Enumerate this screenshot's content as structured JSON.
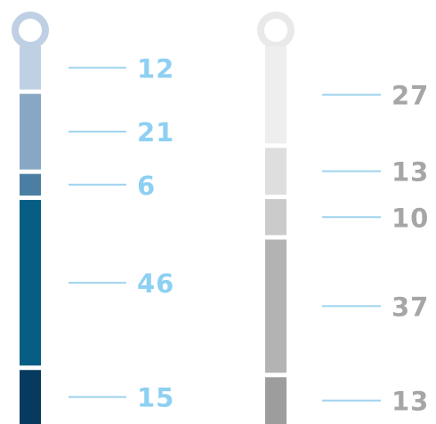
{
  "chart_data": [
    {
      "type": "stacked-bar",
      "values": [
        12,
        21,
        6,
        46,
        15
      ],
      "labels": [
        "12",
        "21",
        "6",
        "46",
        "15"
      ],
      "segment_colors": [
        "#bfd0e4",
        "#87a7c4",
        "#4a7ea2",
        "#075e85",
        "#073a5f"
      ],
      "ring_color": "#bfd0e4",
      "leader_color": "#9fd3ee",
      "label_color": "#8ed0f2"
    },
    {
      "type": "stacked-bar",
      "values": [
        27,
        13,
        10,
        37,
        13
      ],
      "labels": [
        "27",
        "13",
        "10",
        "37",
        "13"
      ],
      "segment_colors": [
        "#eeeeee",
        "#dedede",
        "#cbcbcb",
        "#b3b3b3",
        "#9d9d9d"
      ],
      "ring_color": "#e9e9e9",
      "leader_color": "#9fd3ee",
      "label_color": "#a6a6a6"
    }
  ]
}
